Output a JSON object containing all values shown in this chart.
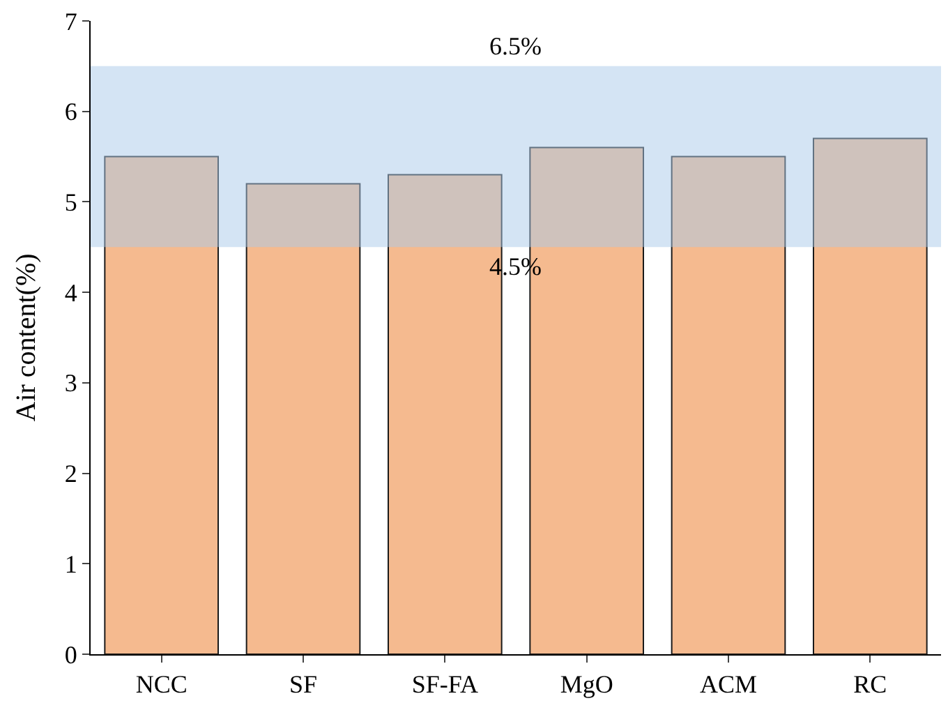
{
  "chart_data": {
    "type": "bar",
    "ylabel": "Air content(%)",
    "categories": [
      "NCC",
      "SF",
      "SF-FA",
      "MgO",
      "ACM",
      "RC"
    ],
    "values": [
      5.5,
      5.2,
      5.3,
      5.6,
      5.5,
      5.7
    ],
    "color": "#f5ba8f",
    "ylim": [
      0,
      7
    ],
    "yticks": [
      0,
      1,
      2,
      3,
      4,
      5,
      6,
      7
    ],
    "bands": [
      {
        "axis": "y",
        "from": 4.5,
        "to": 6.5,
        "color": "#a9c9ea"
      }
    ],
    "annotations": [
      {
        "text": "6.5%",
        "y": 6.5
      },
      {
        "text": "4.5%",
        "y": 4.5
      }
    ]
  }
}
